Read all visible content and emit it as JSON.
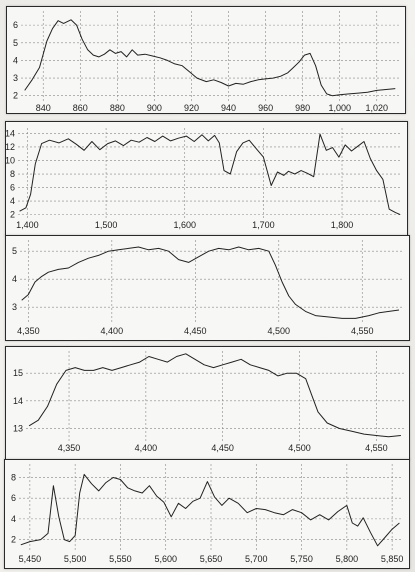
{
  "chart_data": [
    {
      "type": "line",
      "xticks": [
        "840",
        "860",
        "880",
        "900",
        "920",
        "940",
        "960",
        "980",
        "1,000",
        "1,020"
      ],
      "xtick_values": [
        840,
        860,
        880,
        900,
        920,
        940,
        960,
        980,
        1000,
        1020
      ],
      "yticks": [
        "2",
        "3",
        "4",
        "5",
        "6"
      ],
      "ytick_values": [
        2,
        3,
        4,
        5,
        6
      ],
      "xlim": [
        828,
        1032
      ],
      "ylim": [
        1.7,
        6.8
      ],
      "grid": true,
      "series": [
        {
          "x": [
            830,
            834,
            838,
            842,
            845,
            848,
            851,
            855,
            858,
            861,
            864,
            867,
            870,
            873,
            876,
            879,
            882,
            885,
            888,
            891,
            895,
            899,
            903,
            907,
            911,
            915,
            919,
            923,
            928,
            932,
            936,
            940,
            944,
            948,
            952,
            956,
            960,
            964,
            968,
            972,
            975,
            978,
            981,
            984,
            987,
            990,
            993,
            996,
            1000,
            1005,
            1010,
            1015,
            1020,
            1025,
            1030
          ],
          "y": [
            2.3,
            2.9,
            3.6,
            5.1,
            5.8,
            6.25,
            6.1,
            6.3,
            6.0,
            5.2,
            4.6,
            4.3,
            4.2,
            4.35,
            4.6,
            4.4,
            4.5,
            4.2,
            4.6,
            4.3,
            4.35,
            4.25,
            4.15,
            4.0,
            3.8,
            3.7,
            3.35,
            3.0,
            2.8,
            2.9,
            2.75,
            2.55,
            2.7,
            2.65,
            2.8,
            2.9,
            2.95,
            3.0,
            3.1,
            3.3,
            3.6,
            3.9,
            4.3,
            4.4,
            3.7,
            2.6,
            2.1,
            2.0,
            2.05,
            2.1,
            2.15,
            2.2,
            2.3,
            2.35,
            2.4
          ]
        }
      ]
    },
    {
      "type": "line",
      "xticks": [
        "1,400",
        "1,500",
        "1,600",
        "1,700",
        "1,800"
      ],
      "xtick_values": [
        1400,
        1500,
        1600,
        1700,
        1800
      ],
      "yticks": [
        "2",
        "4",
        "6",
        "8",
        "10",
        "12",
        "14"
      ],
      "ytick_values": [
        2,
        4,
        6,
        8,
        10,
        12,
        14
      ],
      "xlim": [
        1388,
        1875
      ],
      "ylim": [
        1.5,
        14.8
      ],
      "grid": true,
      "series": [
        {
          "x": [
            1390,
            1398,
            1404,
            1410,
            1418,
            1428,
            1440,
            1452,
            1462,
            1472,
            1482,
            1492,
            1502,
            1512,
            1522,
            1532,
            1542,
            1552,
            1562,
            1572,
            1582,
            1592,
            1602,
            1612,
            1622,
            1630,
            1638,
            1644,
            1650,
            1658,
            1666,
            1674,
            1682,
            1692,
            1700,
            1710,
            1718,
            1726,
            1732,
            1740,
            1748,
            1756,
            1764,
            1772,
            1780,
            1788,
            1796,
            1804,
            1812,
            1820,
            1828,
            1836,
            1844,
            1852,
            1860,
            1868,
            1874
          ],
          "y": [
            2.5,
            3.0,
            5.0,
            9.5,
            12.5,
            13.0,
            12.6,
            13.2,
            12.4,
            11.5,
            12.8,
            11.6,
            12.5,
            12.9,
            12.2,
            13.0,
            12.7,
            13.4,
            12.8,
            13.6,
            12.9,
            13.3,
            13.6,
            12.8,
            13.8,
            12.9,
            13.7,
            12.6,
            8.5,
            8.0,
            11.3,
            12.6,
            13.0,
            11.6,
            10.5,
            6.3,
            8.3,
            7.8,
            8.4,
            8.0,
            8.5,
            8.1,
            7.6,
            13.9,
            11.5,
            11.9,
            10.5,
            12.3,
            11.4,
            12.1,
            12.8,
            10.3,
            8.5,
            7.2,
            2.8,
            2.3,
            2.0
          ]
        }
      ]
    },
    {
      "type": "line",
      "xticks": [
        "4,350",
        "4,400",
        "4,450",
        "4,500",
        "4,550"
      ],
      "xtick_values": [
        4350,
        4400,
        4450,
        4500,
        4550
      ],
      "yticks": [
        "3",
        "4",
        "5"
      ],
      "ytick_values": [
        3,
        4,
        5
      ],
      "xlim": [
        4345,
        4575
      ],
      "ylim": [
        2.4,
        5.4
      ],
      "grid": true,
      "series": [
        {
          "x": [
            4346,
            4350,
            4354,
            4358,
            4362,
            4368,
            4374,
            4380,
            4386,
            4392,
            4398,
            4404,
            4410,
            4416,
            4422,
            4428,
            4434,
            4440,
            4446,
            4452,
            4458,
            4464,
            4470,
            4476,
            4482,
            4488,
            4494,
            4498,
            4502,
            4506,
            4510,
            4516,
            4522,
            4530,
            4538,
            4546,
            4554,
            4560,
            4566,
            4572
          ],
          "y": [
            3.25,
            3.45,
            3.9,
            4.1,
            4.25,
            4.35,
            4.4,
            4.6,
            4.75,
            4.85,
            5.0,
            5.05,
            5.1,
            5.15,
            5.05,
            5.1,
            5.0,
            4.7,
            4.6,
            4.8,
            5.0,
            5.1,
            5.05,
            5.15,
            5.05,
            5.1,
            5.0,
            4.5,
            3.9,
            3.4,
            3.1,
            2.85,
            2.7,
            2.65,
            2.6,
            2.6,
            2.7,
            2.8,
            2.85,
            2.9
          ]
        }
      ]
    },
    {
      "type": "line",
      "xticks": [
        "4,350",
        "4,400",
        "4,450",
        "4,500",
        "4,550"
      ],
      "xtick_values": [
        4350,
        4400,
        4450,
        4500,
        4550
      ],
      "yticks": [
        "13",
        "14",
        "15"
      ],
      "ytick_values": [
        13,
        14,
        15
      ],
      "xlim": [
        4322,
        4568
      ],
      "ylim": [
        12.55,
        15.8
      ],
      "grid": true,
      "series": [
        {
          "x": [
            4324,
            4330,
            4336,
            4342,
            4348,
            4354,
            4360,
            4366,
            4372,
            4378,
            4384,
            4390,
            4396,
            4402,
            4408,
            4414,
            4420,
            4426,
            4432,
            4438,
            4444,
            4450,
            4456,
            4462,
            4468,
            4474,
            4480,
            4486,
            4492,
            4498,
            4504,
            4508,
            4512,
            4518,
            4526,
            4534,
            4542,
            4550,
            4558,
            4566
          ],
          "y": [
            13.1,
            13.3,
            13.8,
            14.6,
            15.1,
            15.2,
            15.1,
            15.1,
            15.2,
            15.1,
            15.2,
            15.3,
            15.4,
            15.6,
            15.5,
            15.4,
            15.6,
            15.7,
            15.5,
            15.3,
            15.2,
            15.3,
            15.4,
            15.5,
            15.3,
            15.2,
            15.1,
            14.9,
            15.0,
            15.0,
            14.8,
            14.2,
            13.6,
            13.2,
            13.0,
            12.9,
            12.8,
            12.75,
            12.7,
            12.75
          ]
        }
      ]
    },
    {
      "type": "line",
      "xticks": [
        "5,450",
        "5,500",
        "5,550",
        "5,600",
        "5,650",
        "5,700",
        "5,750",
        "5,800",
        "5,850"
      ],
      "xtick_values": [
        5450,
        5500,
        5550,
        5600,
        5650,
        5700,
        5750,
        5800,
        5850
      ],
      "yticks": [
        "2",
        "4",
        "6",
        "8"
      ],
      "ytick_values": [
        2,
        4,
        6,
        8
      ],
      "xlim": [
        5438,
        5862
      ],
      "ylim": [
        0.8,
        9.3
      ],
      "grid": true,
      "series": [
        {
          "x": [
            5440,
            5450,
            5462,
            5470,
            5476,
            5482,
            5488,
            5494,
            5500,
            5505,
            5510,
            5518,
            5526,
            5534,
            5542,
            5550,
            5558,
            5566,
            5574,
            5582,
            5590,
            5598,
            5606,
            5614,
            5622,
            5630,
            5638,
            5646,
            5654,
            5662,
            5670,
            5680,
            5690,
            5700,
            5710,
            5720,
            5730,
            5740,
            5750,
            5760,
            5770,
            5780,
            5790,
            5800,
            5806,
            5812,
            5818,
            5826,
            5834,
            5842,
            5850,
            5858
          ],
          "y": [
            1.5,
            1.8,
            2.0,
            2.6,
            7.2,
            4.2,
            2.0,
            1.8,
            2.4,
            6.5,
            8.3,
            7.4,
            6.7,
            7.5,
            8.0,
            7.8,
            7.0,
            6.7,
            6.5,
            7.2,
            6.2,
            5.6,
            4.2,
            5.5,
            5.0,
            5.7,
            6.0,
            7.6,
            6.1,
            5.3,
            6.0,
            5.5,
            4.6,
            5.0,
            4.9,
            4.6,
            4.4,
            4.9,
            4.6,
            3.9,
            4.4,
            3.9,
            4.7,
            5.3,
            3.6,
            3.3,
            4.1,
            2.7,
            1.4,
            2.2,
            3.0,
            3.6
          ]
        }
      ]
    }
  ]
}
